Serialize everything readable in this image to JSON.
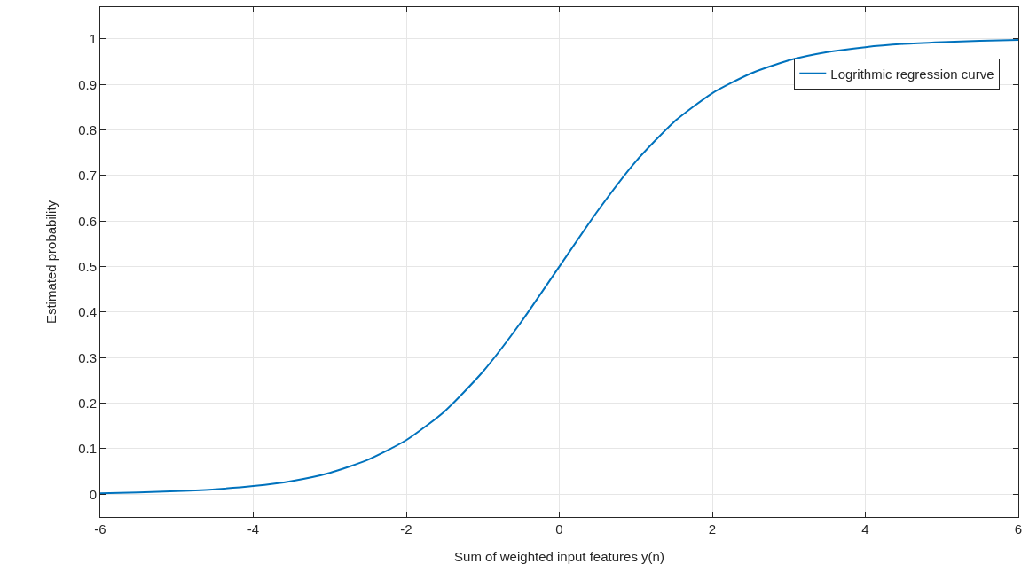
{
  "chart_data": {
    "type": "line",
    "xlabel": "Sum of weighted input features y(n)",
    "ylabel": "Estimated probability",
    "x": [
      -6,
      -5.5,
      -5,
      -4.5,
      -4,
      -3.5,
      -3,
      -2.5,
      -2,
      -1.5,
      -1,
      -0.5,
      0,
      0.5,
      1,
      1.5,
      2,
      2.5,
      3,
      3.5,
      4,
      4.5,
      5,
      5.5,
      6
    ],
    "series": [
      {
        "name": "Logrithmic regression curve",
        "color": "#0072bd",
        "values": [
          0.002,
          0.004,
          0.007,
          0.011,
          0.018,
          0.029,
          0.047,
          0.076,
          0.119,
          0.182,
          0.269,
          0.378,
          0.5,
          0.622,
          0.731,
          0.818,
          0.881,
          0.924,
          0.953,
          0.971,
          0.982,
          0.989,
          0.993,
          0.996,
          0.998
        ]
      }
    ],
    "xlim": [
      -6,
      6
    ],
    "xticks": [
      -6,
      -4,
      -2,
      0,
      2,
      4,
      6
    ],
    "ylim": [
      -0.05,
      1.07
    ],
    "yticks": [
      0,
      0.1,
      0.2,
      0.3,
      0.4,
      0.5,
      0.6,
      0.7,
      0.8,
      0.9,
      1
    ],
    "grid": true,
    "legend": "top right",
    "marker": "none",
    "line_style": "solid"
  }
}
